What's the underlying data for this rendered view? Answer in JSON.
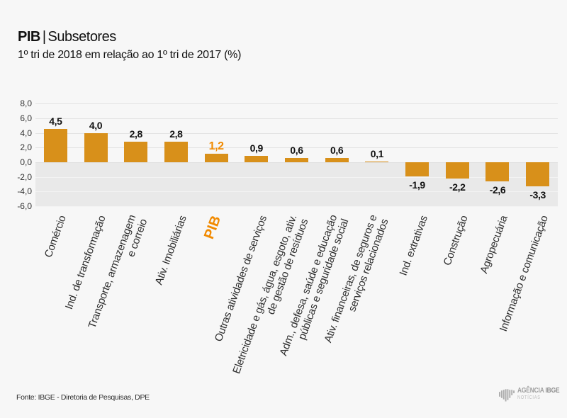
{
  "title": {
    "main": "PIB",
    "separator": "|",
    "secondary": "Subsetores"
  },
  "subtitle": "1º tri de 2018 em relação ao 1º tri de 2017 (%)",
  "footer": {
    "source": "Fonte: IBGE - Diretoria de Pesquisas, DPE"
  },
  "logo": {
    "agency": "AGÊNCIA",
    "org": "IBGE",
    "tagline": "NOTÍCIAS"
  },
  "colors": {
    "bar": "#D8901A",
    "highlight_text": "#F18A00",
    "negative_area": "#e9e9e9",
    "grid_above": "#e3e3e3",
    "grid_below": "#f3f3f3",
    "background": "#f7f7f7"
  },
  "chart_data": {
    "type": "bar",
    "title": "PIB | Subsetores",
    "subtitle": "1º tri de 2018 em relação ao 1º tri de 2017 (%)",
    "ylim": [
      -6,
      8
    ],
    "ytick_step": 2,
    "ytick_labels": [
      "8,0",
      "6,0",
      "4,0",
      "2,0",
      "0,0",
      "-2,0",
      "-4,0",
      "-6,0"
    ],
    "categories": [
      "Comércio",
      "Ind. de transformação",
      "Transporte, armazenagem\ne correio",
      "Ativ. Imobiliárias",
      "PIB",
      "Outras atividades de serviços",
      "Eletricidade e gás, água, esgoto, ativ.\nde gestão de resíduos",
      "Adm., defesa, saúde e educação\npúblicas e seguridade social",
      "Ativ. financeiras, de seguros e\nserviços relacionados",
      "Ind. extrativas",
      "Construção",
      "Agropecuária",
      "Informação e comunicação"
    ],
    "values": [
      4.5,
      4.0,
      2.8,
      2.8,
      1.2,
      0.9,
      0.6,
      0.6,
      0.1,
      -1.9,
      -2.2,
      -2.6,
      -3.3
    ],
    "value_labels": [
      "4,5",
      "4,0",
      "2,8",
      "2,8",
      "1,2",
      "0,9",
      "0,6",
      "0,6",
      "0,1",
      "-1,9",
      "-2,2",
      "-2,6",
      "-3,3"
    ],
    "highlight_index": 4,
    "legend": null,
    "grid": true
  }
}
